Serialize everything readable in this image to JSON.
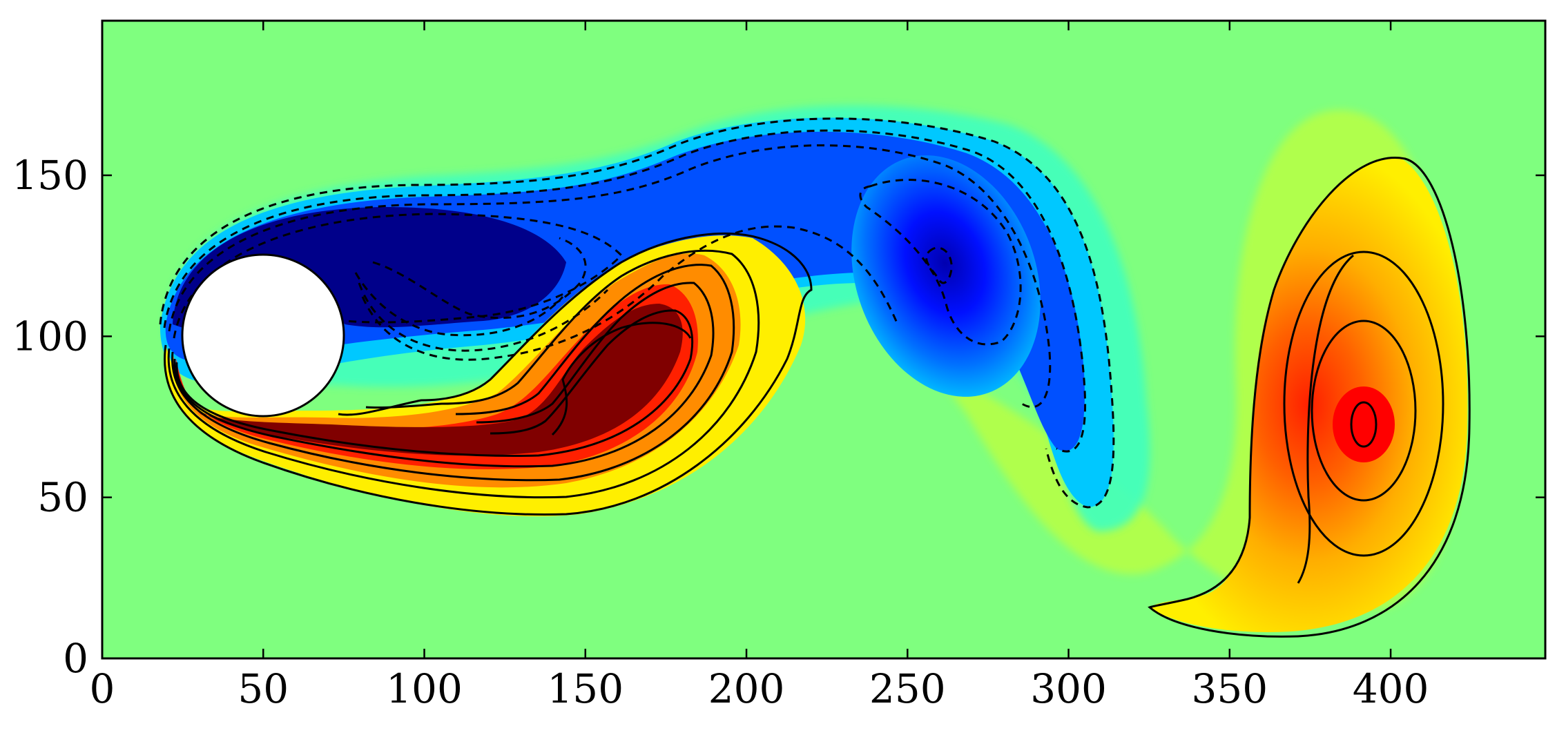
{
  "chart_data": {
    "type": "heatmap",
    "subtype": "filled vorticity contours with line contours (flow past a cylinder)",
    "title": "",
    "xlabel": "",
    "ylabel": "",
    "xlim": [
      0,
      448
    ],
    "ylim": [
      0,
      198
    ],
    "xticks": [
      0,
      50,
      100,
      150,
      200,
      250,
      300,
      350,
      400
    ],
    "yticks": [
      0,
      50,
      100,
      150
    ],
    "xtick_labels": [
      "0",
      "50",
      "100",
      "150",
      "200",
      "250",
      "300",
      "350",
      "400"
    ],
    "ytick_labels": [
      "0",
      "50",
      "100",
      "150"
    ],
    "colormap": "jet",
    "background_value_color": "#7fff7f",
    "cylinder": {
      "center": [
        50,
        100
      ],
      "radius": 25,
      "fill": "#ffffff"
    },
    "contour_style": {
      "positive": "solid",
      "negative": "dashed",
      "color": "#000000"
    },
    "grid": false,
    "legend": "none"
  }
}
